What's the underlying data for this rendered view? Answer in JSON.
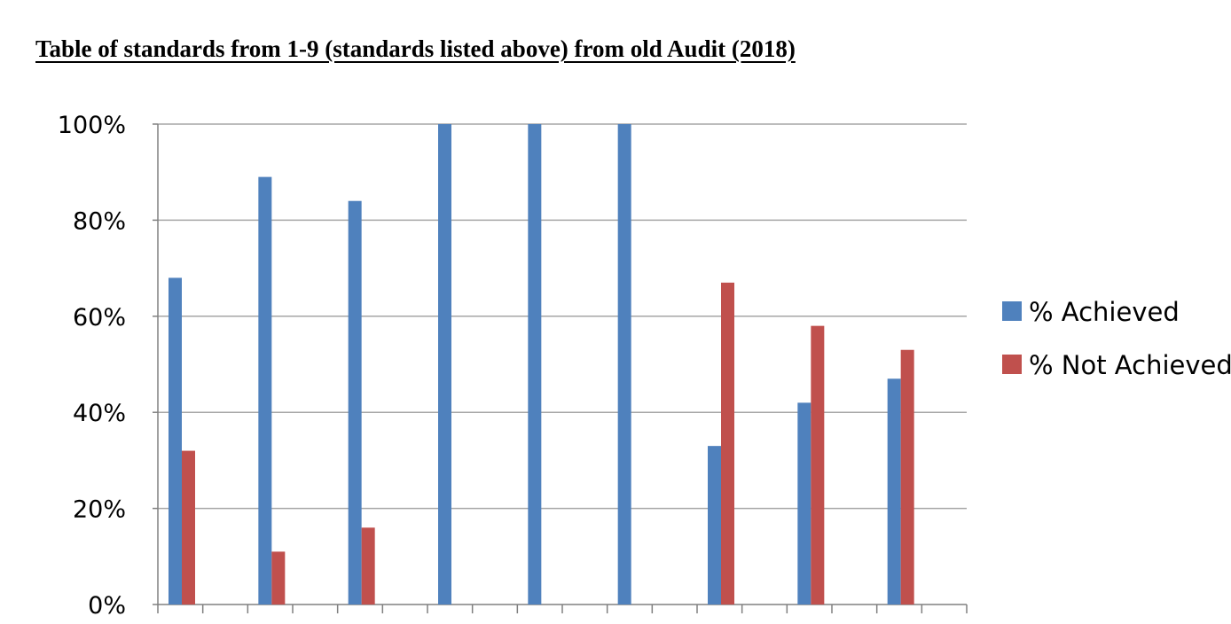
{
  "chart_data": {
    "type": "bar",
    "title": "Table of standards from 1-9 (standards listed above) from old Audit (2018)",
    "xlabel": "",
    "ylabel": "",
    "categories": [
      "",
      "",
      "",
      "",
      "",
      "",
      "",
      "",
      ""
    ],
    "series": [
      {
        "name": "% Achieved",
        "color": "#4F81BD",
        "values": [
          68,
          89,
          84,
          100,
          100,
          100,
          33,
          42,
          47
        ]
      },
      {
        "name": "% Not Achieved",
        "color": "#C0504D",
        "values": [
          32,
          11,
          16,
          0,
          0,
          0,
          67,
          58,
          53
        ]
      }
    ],
    "ylim": [
      0,
      100
    ],
    "yticks": [
      "0%",
      "20%",
      "40%",
      "60%",
      "80%",
      "100%"
    ],
    "grid": true,
    "legend_position": "right"
  }
}
